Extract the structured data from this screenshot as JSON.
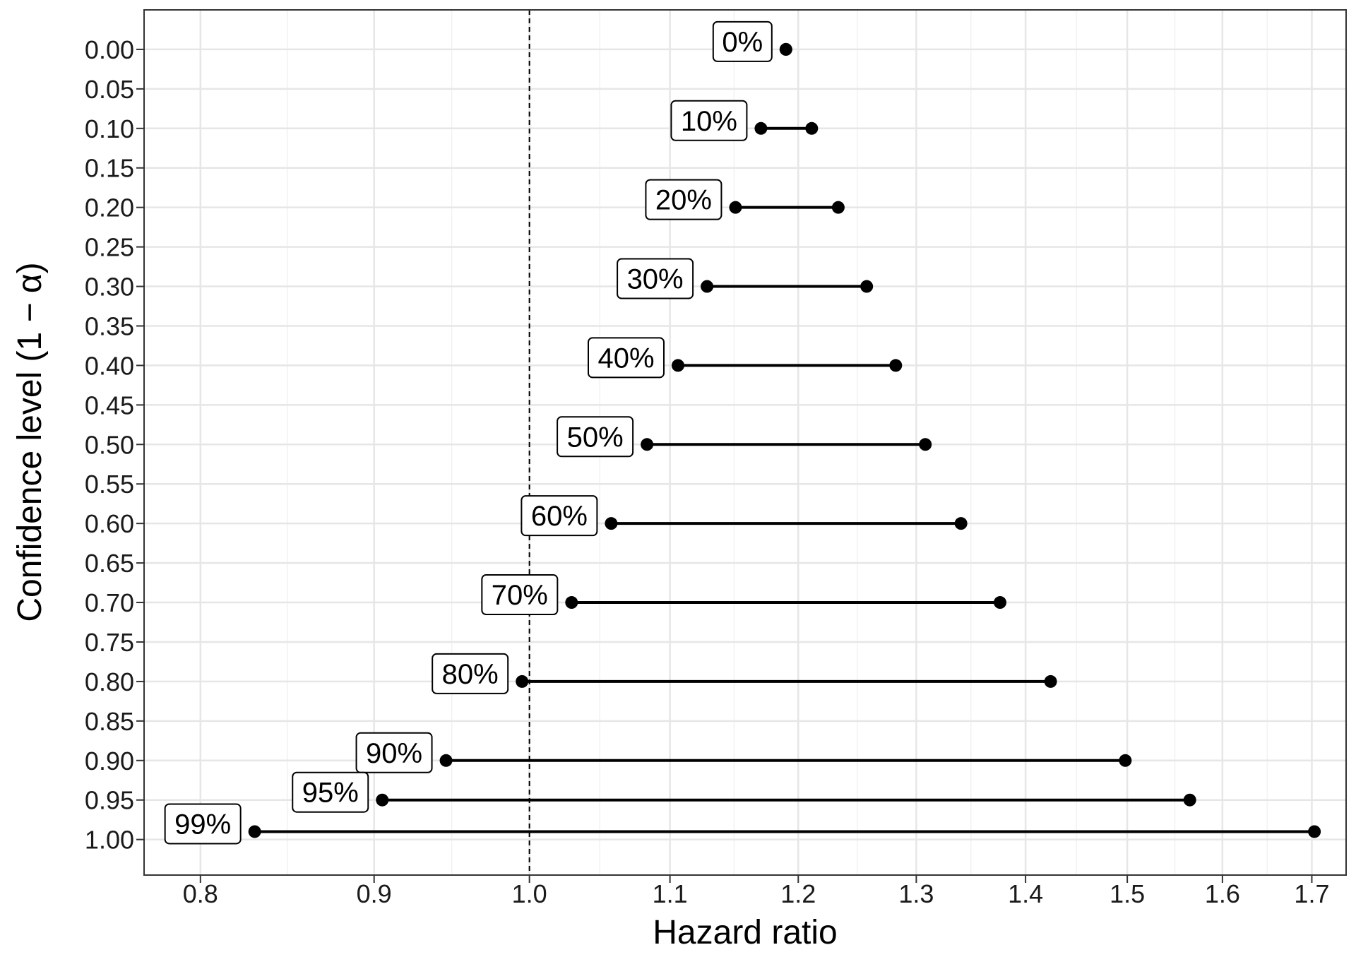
{
  "chart_data": {
    "type": "interval",
    "xlabel": "Hazard ratio",
    "ylabel": "Confidence level (1 − α)",
    "xlim": [
      0.77,
      1.74
    ],
    "ylim": [
      -0.05,
      1.045
    ],
    "x_scale": "log",
    "x_ticks": [
      "0.8",
      "0.9",
      "1.0",
      "1.1",
      "1.2",
      "1.3",
      "1.4",
      "1.5",
      "1.6",
      "1.7"
    ],
    "y_ticks": [
      "0.00",
      "0.05",
      "0.10",
      "0.15",
      "0.20",
      "0.25",
      "0.30",
      "0.35",
      "0.40",
      "0.45",
      "0.50",
      "0.55",
      "0.60",
      "0.65",
      "0.70",
      "0.75",
      "0.80",
      "0.85",
      "0.90",
      "0.95",
      "1.00"
    ],
    "reference_line": {
      "x": 1.0,
      "style": "dashed"
    },
    "grid": true,
    "intervals": [
      {
        "label": "0%",
        "level": 0.0,
        "lower": 1.19,
        "upper": 1.19
      },
      {
        "label": "10%",
        "level": 0.1,
        "lower": 1.17,
        "upper": 1.211
      },
      {
        "label": "20%",
        "level": 0.2,
        "lower": 1.15,
        "upper": 1.233
      },
      {
        "label": "30%",
        "level": 0.3,
        "lower": 1.128,
        "upper": 1.257
      },
      {
        "label": "40%",
        "level": 0.4,
        "lower": 1.106,
        "upper": 1.282
      },
      {
        "label": "50%",
        "level": 0.5,
        "lower": 1.083,
        "upper": 1.308
      },
      {
        "label": "60%",
        "level": 0.6,
        "lower": 1.057,
        "upper": 1.34
      },
      {
        "label": "70%",
        "level": 0.7,
        "lower": 1.029,
        "upper": 1.376
      },
      {
        "label": "80%",
        "level": 0.8,
        "lower": 0.995,
        "upper": 1.424
      },
      {
        "label": "90%",
        "level": 0.9,
        "lower": 0.945,
        "upper": 1.498
      },
      {
        "label": "95%",
        "level": 0.95,
        "lower": 0.905,
        "upper": 1.565
      },
      {
        "label": "99%",
        "level": 0.99,
        "lower": 0.83,
        "upper": 1.703
      }
    ]
  }
}
